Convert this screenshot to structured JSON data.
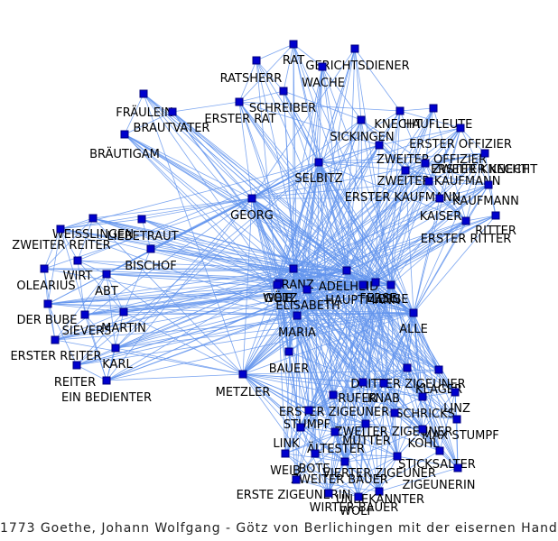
{
  "caption": "1773 Goethe, Johann Wolfgang - Götz von Berlichingen mit der eisernen Hand",
  "colors": {
    "edge": "#6495ED",
    "node_fill": "#0000CD",
    "node_stroke": "#000080",
    "label": "#000000"
  },
  "nodes": [
    "RAT",
    "GERICHTSDIENER",
    "RATSHERR",
    "WACHE",
    "SCHREIBER",
    "ERSTER RAT",
    "FRÄULEIN",
    "BRAUTVATER",
    "BRÄUTIGAM",
    "KNECHT",
    "HAUFLEUTE",
    "SICKINGEN",
    "ERSTER OFFIZIER",
    "ZWEITER OFFIZIER",
    "ZWEITER KNECHT",
    "ERSTER KNECHT",
    "SELBITZ",
    "ZWEITER KAUFMANN",
    "ERSTER KAUFMANN",
    "KAUFMANN",
    "KAISER",
    "RITTER",
    "ERSTER RITTER",
    "GEORG",
    "WEISSLINGEN",
    "LIEBETRAUT",
    "ZWEITER REITER",
    "BISCHOF",
    "WIRT",
    "OLEARIUS",
    "ABT",
    "FRANZ",
    "ADELHEID",
    "WEIB",
    "GÖTZ",
    "HAUPTMANN",
    "ELISABETH",
    "FERSE",
    "LERSE",
    "ALLE",
    "DER BUBE",
    "SIEVERS",
    "MARTIN",
    "MARIA",
    "ERSTER REITER",
    "KARL",
    "REITER",
    "EIN BEDIENTER",
    "BAUER",
    "METZLER",
    "DRITTER ZIGEUNER",
    "KLAGER",
    "RUFER",
    "KNAB",
    "LINZ",
    "ERSTER ZIGEUNER",
    "SCHRICKS",
    "STUMPF",
    "ZWEITER ZIGEUNER",
    "MAX STUMPF",
    "KOHL",
    "LINK",
    "MUTTER",
    "ÄLTESTER",
    "STICKSALTER",
    "WEIB",
    "BOTE",
    "VIERTER ZIGEUNER",
    "ZWEITER BAUER",
    "ZIGEUNERIN",
    "ERSTE ZIGEUNERIN",
    "UNBEKANNTER",
    "WIRTER BAUER",
    "WOLF"
  ]
}
